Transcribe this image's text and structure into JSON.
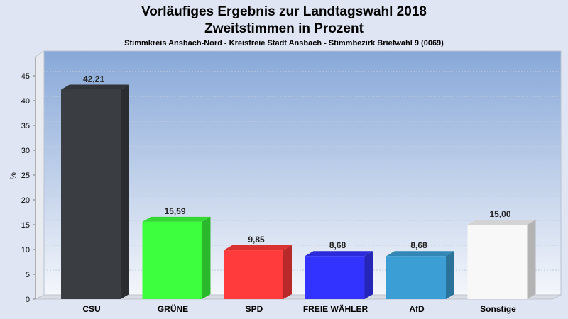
{
  "chart_data": {
    "type": "bar",
    "title": "Vorläufiges Ergebnis zur Landtagswahl 2018",
    "subtitle": "Zweitstimmen in Prozent",
    "caption": "Stimmkreis Ansbach-Nord - Kreisfreie Stadt Ansbach - Stimmbezirk Briefwahl 9 (0069)",
    "ylabel": "%",
    "ylim": [
      0,
      45
    ],
    "yticks": [
      0,
      5,
      10,
      15,
      20,
      25,
      30,
      35,
      40,
      45
    ],
    "grid": true,
    "categories": [
      "CSU",
      "GRÜNE",
      "SPD",
      "FREIE WÄHLER",
      "AfD",
      "Sonstige"
    ],
    "values": [
      42.21,
      15.59,
      9.85,
      8.68,
      8.68,
      15.0
    ],
    "value_labels": [
      "42,21",
      "15,59",
      "9,85",
      "8,68",
      "8,68",
      "15,00"
    ],
    "colors": [
      "#3a3d42",
      "#3dff3d",
      "#ff3b3b",
      "#3333ff",
      "#3b9fd6",
      "#f8f8f8"
    ]
  }
}
